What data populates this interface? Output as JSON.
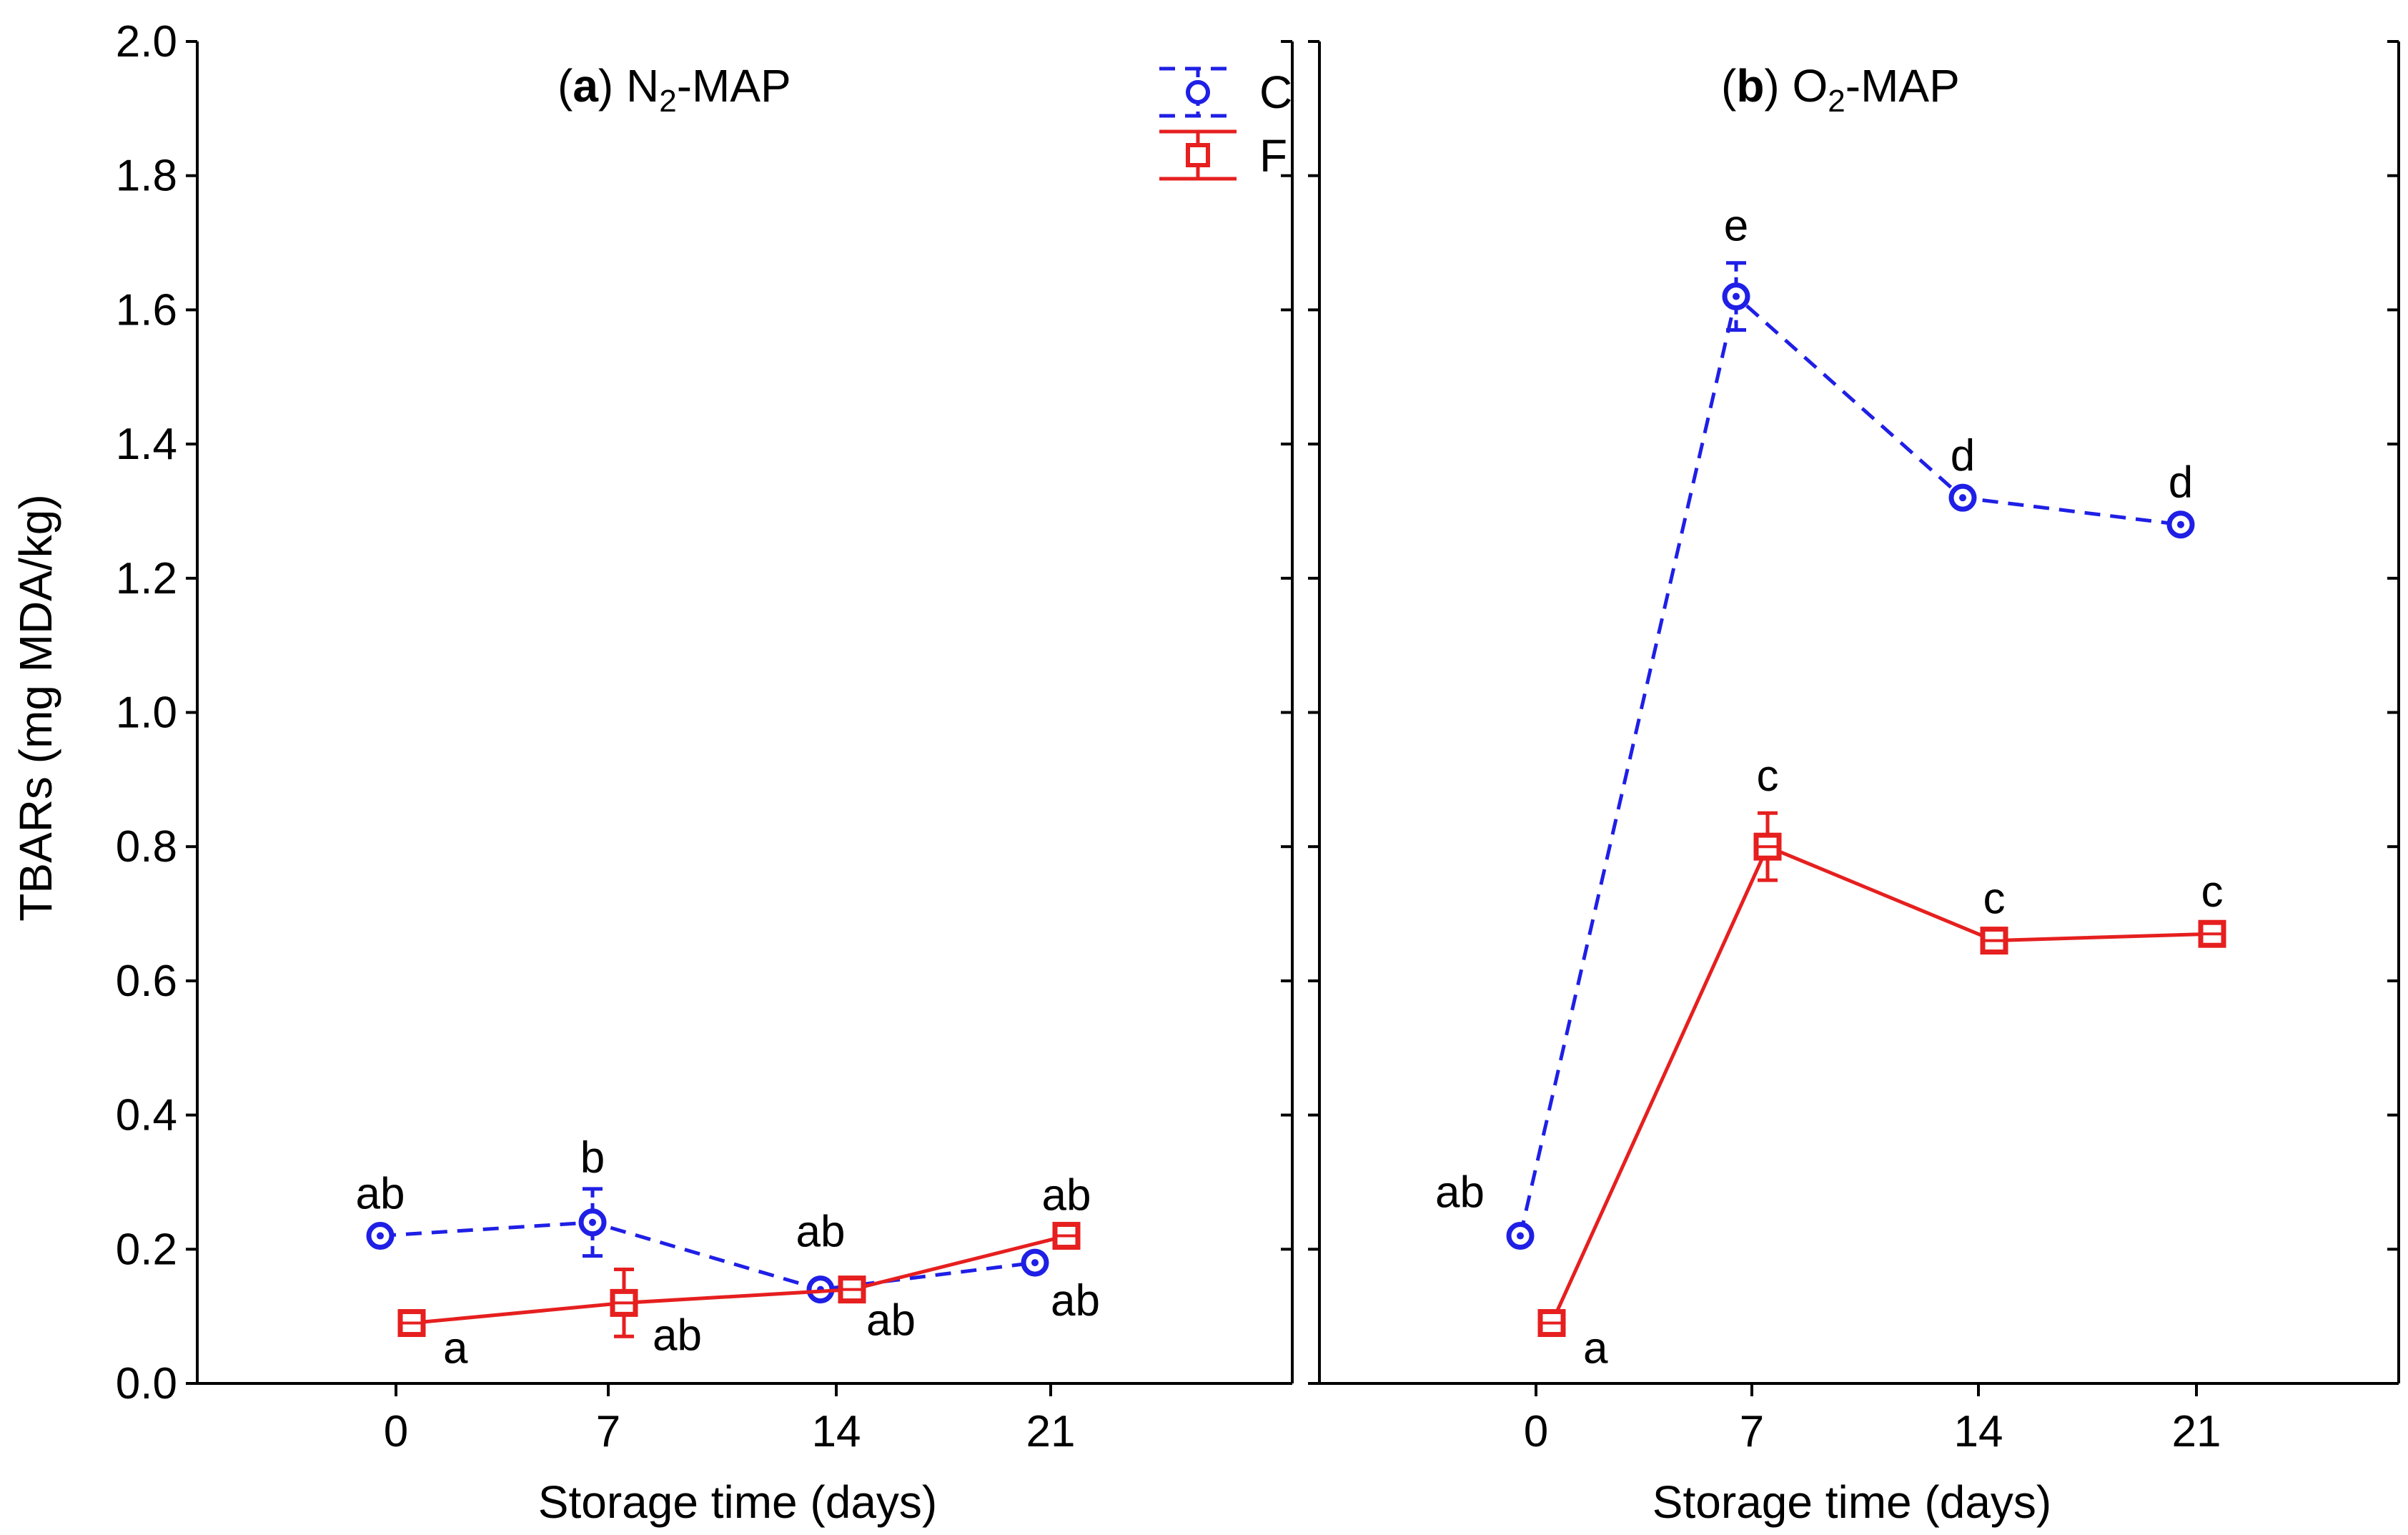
{
  "chart_data": [
    {
      "type": "line",
      "panel_letter": "a",
      "title_prefix": "N",
      "title_sub": "2",
      "title_suffix": "-MAP",
      "xlabel": "Storage time (days)",
      "ylabel": "TBARs (mg MDA/kg)",
      "ylim": [
        0,
        2.0
      ],
      "yticks": [
        "0.0",
        "0.2",
        "0.4",
        "0.6",
        "0.8",
        "1.0",
        "1.2",
        "1.4",
        "1.6",
        "1.8",
        "2.0"
      ],
      "categories": [
        "0",
        "7",
        "14",
        "21"
      ],
      "series": [
        {
          "name": "C",
          "color": "#1f1fe6",
          "style": "dashed",
          "marker": "circle",
          "values": [
            0.22,
            0.24,
            0.14,
            0.18
          ],
          "errors": [
            0.01,
            0.05,
            0.01,
            0.01
          ],
          "labels": [
            "ab",
            "b",
            "ab",
            "ab"
          ]
        },
        {
          "name": "F",
          "color": "#e61f1f",
          "style": "solid",
          "marker": "square",
          "values": [
            0.09,
            0.12,
            0.14,
            0.22
          ],
          "errors": [
            0.01,
            0.05,
            0.01,
            0.01
          ],
          "labels": [
            "a",
            "ab",
            "ab",
            "ab"
          ]
        }
      ]
    },
    {
      "type": "line",
      "panel_letter": "b",
      "title_prefix": "O",
      "title_sub": "2",
      "title_suffix": "-MAP",
      "xlabel": "Storage time (days)",
      "ylim": [
        0,
        2.0
      ],
      "categories": [
        "0",
        "7",
        "14",
        "21"
      ],
      "series": [
        {
          "name": "C",
          "color": "#1f1fe6",
          "style": "dashed",
          "marker": "circle",
          "values": [
            0.22,
            1.62,
            1.32,
            1.28
          ],
          "errors": [
            0.01,
            0.05,
            0.01,
            0.01
          ],
          "labels": [
            "ab",
            "e",
            "d",
            "d"
          ]
        },
        {
          "name": "F",
          "color": "#e61f1f",
          "style": "solid",
          "marker": "square",
          "values": [
            0.09,
            0.8,
            0.66,
            0.67
          ],
          "errors": [
            0.01,
            0.05,
            0.01,
            0.01
          ],
          "labels": [
            "a",
            "c",
            "c",
            "c"
          ]
        }
      ]
    }
  ],
  "legend": {
    "placement": "top-right of panel a",
    "items": [
      {
        "name": "C",
        "color": "#1f1fe6",
        "style": "dashed",
        "marker": "circle"
      },
      {
        "name": "F",
        "color": "#e61f1f",
        "style": "solid",
        "marker": "square"
      }
    ]
  }
}
